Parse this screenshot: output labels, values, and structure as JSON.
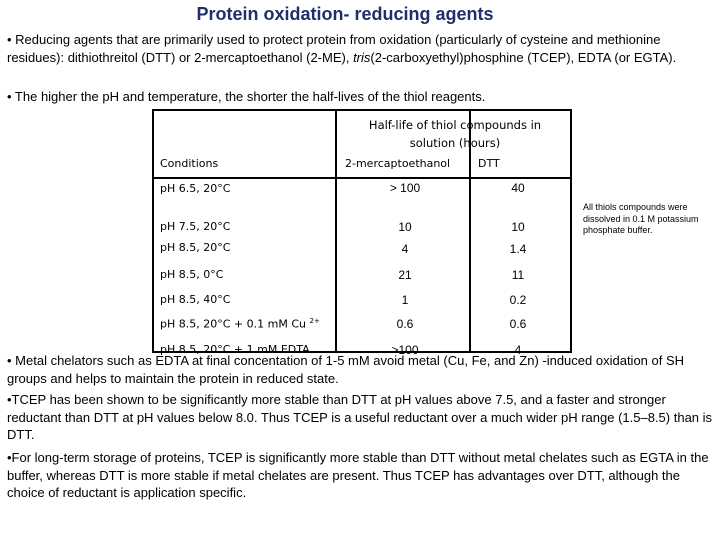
{
  "title": "Protein oxidation- reducing agents",
  "bullets": {
    "b1_pre": "• Reducing agents that are primarily used to protect protein from oxidation (particularly of cysteine and methionine residues): dithiothreitol (DTT) or 2-mercaptoethanol (2-ME), ",
    "b1_italic": "tris",
    "b1_post": "(2-carboxyethyl)phosphine (TCEP), EDTA (or EGTA).",
    "b2": "• The higher the pH and temperature, the shorter the half-lives of the thiol reagents.",
    "b3": "• Metal chelators such as EDTA at final concentation of 1-5 mM avoid metal (Cu, Fe, and Zn) -induced oxidation of SH groups and helps to maintain the protein in reduced state.",
    "b4": "•TCEP has been shown to be significantly more stable than DTT at pH values above 7.5, and a faster and stronger reductant than DTT at pH values below 8.0. Thus TCEP is a useful reductant over a much wider pH range (1.5–8.5) than is DTT.",
    "b5": "•For long-term storage of proteins, TCEP is significantly more stable than DTT without metal chelates such as EGTA in the buffer, whereas DTT is more stable if metal chelates are present. Thus TCEP has advantages over DTT, although the choice of reductant is application specific."
  },
  "table": {
    "group_header": "Half-life of thiol compounds in solution (hours)",
    "col_conditions": "Conditions",
    "col_2me": "2-mercaptoethanol",
    "col_dtt": "DTT",
    "rows": [
      {
        "condition": "pH 6.5, 20°C",
        "me": "> 100",
        "dtt": "40"
      },
      {
        "condition": "pH 7.5, 20°C",
        "me": "10",
        "dtt": "10"
      },
      {
        "condition": "pH 8.5, 20°C",
        "me": "4",
        "dtt": "1.4"
      },
      {
        "condition": "pH 8.5, 0°C",
        "me": "21",
        "dtt": "11"
      },
      {
        "condition": "pH 8.5, 40°C",
        "me": "1",
        "dtt": "0.2"
      },
      {
        "condition": "pH 8.5, 20°C + 0.1 mM Cu",
        "superscript": "2+",
        "me": "0.6",
        "dtt": "0.6"
      },
      {
        "condition": "pH 8.5, 20°C + 1 mM EDTA",
        "me": ">100",
        "dtt": "4"
      }
    ]
  },
  "side_note": "All thiols compounds were dissolved in 0.1 M potassium phosphate buffer."
}
